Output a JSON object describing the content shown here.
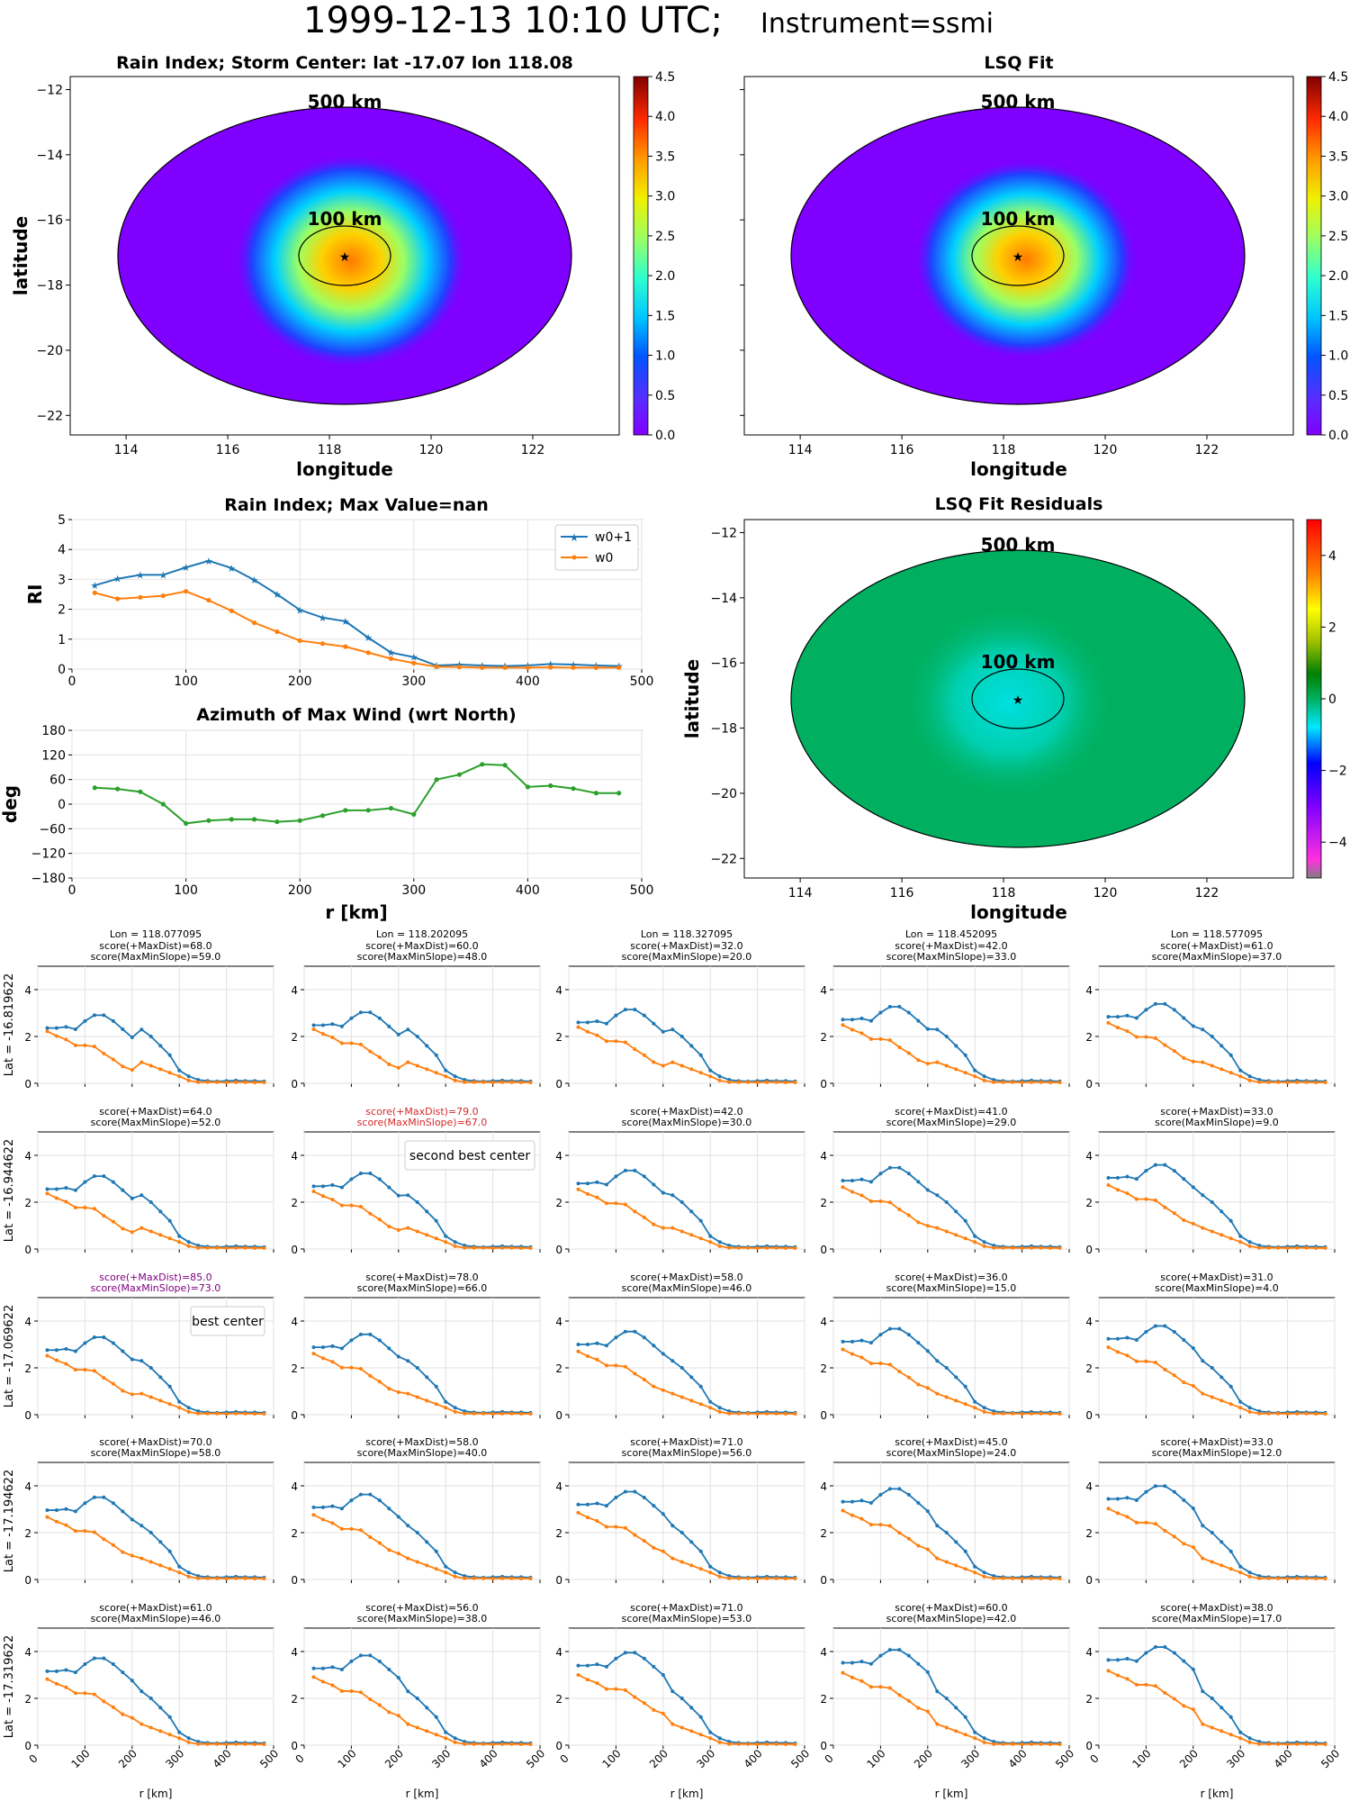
{
  "title": {
    "main": "1999-12-13 10:10 UTC;",
    "instrument": "Instrument=ssmi"
  },
  "map_common": {
    "xlabel": "longitude",
    "ylabel": "latitude",
    "x_ticks": [
      114,
      116,
      118,
      120,
      122
    ],
    "y_ticks": [
      -12,
      -14,
      -16,
      -18,
      -20,
      -22
    ],
    "xlim": [
      112.9,
      123.7
    ],
    "ylim": [
      -22.6,
      -11.6
    ],
    "ring_500_label": "500 km",
    "ring_100_label": "100 km",
    "center": {
      "lon": 118.08,
      "lat": -17.07
    }
  },
  "map_rain_index": {
    "title": "Rain Index; Storm Center: lat -17.07 lon 118.08",
    "colorbar_ticks": [
      "0.0",
      "0.5",
      "1.0",
      "1.5",
      "2.0",
      "2.5",
      "3.0",
      "3.5",
      "4.0",
      "4.5"
    ]
  },
  "map_lsq_fit": {
    "title": "LSQ Fit",
    "colorbar_ticks": [
      "0.0",
      "0.5",
      "1.0",
      "1.5",
      "2.0",
      "2.5",
      "3.0",
      "3.5",
      "4.0",
      "4.5"
    ]
  },
  "map_residuals": {
    "title": "LSQ Fit Residuals",
    "colorbar_ticks": [
      "4",
      "2",
      "0",
      "−2",
      "−4"
    ]
  },
  "chart_data": [
    {
      "type": "line",
      "title": "Rain Index; Max Value=nan",
      "ylabel": "RI",
      "xlim": [
        0,
        500
      ],
      "ylim": [
        0,
        5
      ],
      "x_ticks": [
        0,
        100,
        200,
        300,
        400,
        500
      ],
      "y_ticks": [
        0,
        1,
        2,
        3,
        4,
        5
      ],
      "grid": true,
      "legend": "top-right",
      "x": [
        20,
        40,
        60,
        80,
        100,
        120,
        140,
        160,
        180,
        200,
        220,
        240,
        260,
        280,
        300,
        320,
        340,
        360,
        380,
        400,
        420,
        440,
        460,
        480
      ],
      "series": [
        {
          "name": "w0+1",
          "color": "#1f77b4",
          "marker": "star",
          "values": [
            2.8,
            3.02,
            3.15,
            3.15,
            3.4,
            3.62,
            3.38,
            2.98,
            2.5,
            1.98,
            1.72,
            1.6,
            1.05,
            0.55,
            0.4,
            0.12,
            0.15,
            0.12,
            0.1,
            0.12,
            0.17,
            0.15,
            0.12,
            0.1
          ]
        },
        {
          "name": "w0",
          "color": "#ff7f0e",
          "marker": "dot",
          "values": [
            2.55,
            2.35,
            2.4,
            2.45,
            2.6,
            2.3,
            1.95,
            1.55,
            1.25,
            0.95,
            0.85,
            0.75,
            0.55,
            0.35,
            0.2,
            0.08,
            0.07,
            0.05,
            0.05,
            0.05,
            0.06,
            0.05,
            0.05,
            0.05
          ]
        }
      ]
    },
    {
      "type": "line",
      "title": "Azimuth of Max Wind (wrt North)",
      "ylabel": "deg",
      "xlabel": "r [km]",
      "xlim": [
        0,
        500
      ],
      "ylim": [
        -180,
        180
      ],
      "x_ticks": [
        0,
        100,
        200,
        300,
        400,
        500
      ],
      "y_ticks": [
        -180,
        -120,
        -60,
        0,
        60,
        120,
        180
      ],
      "grid": true,
      "x": [
        20,
        40,
        60,
        80,
        100,
        120,
        140,
        160,
        180,
        200,
        220,
        240,
        260,
        280,
        300,
        320,
        340,
        360,
        380,
        400,
        420,
        440,
        460,
        480
      ],
      "series": [
        {
          "color": "#2ca02c",
          "marker": "dot",
          "values": [
            40,
            37,
            30,
            0,
            -47,
            -40,
            -37,
            -37,
            -43,
            -40,
            -28,
            -15,
            -15,
            -10,
            -25,
            60,
            72,
            97,
            95,
            42,
            45,
            38,
            27,
            27
          ]
        }
      ]
    },
    {
      "type": "line",
      "grid_of_subplots": "5 x 5",
      "xlabel": "r [km]",
      "xlim": [
        0,
        500
      ],
      "ylim": [
        0,
        5
      ],
      "x_ticks": [
        0,
        100,
        200,
        300,
        400,
        500
      ],
      "y_ticks": [
        0,
        2,
        4
      ],
      "x": [
        20,
        40,
        60,
        80,
        100,
        120,
        140,
        160,
        180,
        200,
        220,
        240,
        260,
        280,
        300,
        320,
        340,
        360,
        380,
        400,
        420,
        440,
        460,
        480
      ],
      "col_labels": [
        "Lon = 118.077095",
        "Lon = 118.202095",
        "Lon = 118.327095",
        "Lon = 118.452095",
        "Lon = 118.577095"
      ],
      "row_labels": [
        "Lat = -16.819622",
        "Lat = -16.944622",
        "Lat = -17.069622",
        "Lat = -17.194622",
        "Lat = -17.319622"
      ],
      "panels": [
        [
          {
            "s1": "score(+MaxDist)=68.0",
            "s2": "score(MaxMinSlope)=59.0"
          },
          {
            "s1": "score(+MaxDist)=60.0",
            "s2": "score(MaxMinSlope)=48.0"
          },
          {
            "s1": "score(+MaxDist)=32.0",
            "s2": "score(MaxMinSlope)=20.0"
          },
          {
            "s1": "score(+MaxDist)=42.0",
            "s2": "score(MaxMinSlope)=33.0"
          },
          {
            "s1": "score(+MaxDist)=61.0",
            "s2": "score(MaxMinSlope)=37.0"
          }
        ],
        [
          {
            "s1": "score(+MaxDist)=64.0",
            "s2": "score(MaxMinSlope)=52.0"
          },
          {
            "s1": "score(+MaxDist)=79.0",
            "s2": "score(MaxMinSlope)=67.0",
            "highlight": "red",
            "box": "second best center"
          },
          {
            "s1": "score(+MaxDist)=42.0",
            "s2": "score(MaxMinSlope)=30.0"
          },
          {
            "s1": "score(+MaxDist)=41.0",
            "s2": "score(MaxMinSlope)=29.0"
          },
          {
            "s1": "score(+MaxDist)=33.0",
            "s2": "score(MaxMinSlope)=9.0"
          }
        ],
        [
          {
            "s1": "score(+MaxDist)=85.0",
            "s2": "score(MaxMinSlope)=73.0",
            "highlight": "purple",
            "box": "best center"
          },
          {
            "s1": "score(+MaxDist)=78.0",
            "s2": "score(MaxMinSlope)=66.0"
          },
          {
            "s1": "score(+MaxDist)=58.0",
            "s2": "score(MaxMinSlope)=46.0"
          },
          {
            "s1": "score(+MaxDist)=36.0",
            "s2": "score(MaxMinSlope)=15.0"
          },
          {
            "s1": "score(+MaxDist)=31.0",
            "s2": "score(MaxMinSlope)=4.0"
          }
        ],
        [
          {
            "s1": "score(+MaxDist)=70.0",
            "s2": "score(MaxMinSlope)=58.0"
          },
          {
            "s1": "score(+MaxDist)=58.0",
            "s2": "score(MaxMinSlope)=40.0"
          },
          {
            "s1": "score(+MaxDist)=71.0",
            "s2": "score(MaxMinSlope)=56.0"
          },
          {
            "s1": "score(+MaxDist)=45.0",
            "s2": "score(MaxMinSlope)=24.0"
          },
          {
            "s1": "score(+MaxDist)=33.0",
            "s2": "score(MaxMinSlope)=12.0"
          }
        ],
        [
          {
            "s1": "score(+MaxDist)=61.0",
            "s2": "score(MaxMinSlope)=46.0"
          },
          {
            "s1": "score(+MaxDist)=56.0",
            "s2": "score(MaxMinSlope)=38.0"
          },
          {
            "s1": "score(+MaxDist)=71.0",
            "s2": "score(MaxMinSlope)=53.0"
          },
          {
            "s1": "score(+MaxDist)=60.0",
            "s2": "score(MaxMinSlope)=42.0"
          },
          {
            "s1": "score(+MaxDist)=38.0",
            "s2": "score(MaxMinSlope)=17.0"
          }
        ]
      ]
    }
  ]
}
